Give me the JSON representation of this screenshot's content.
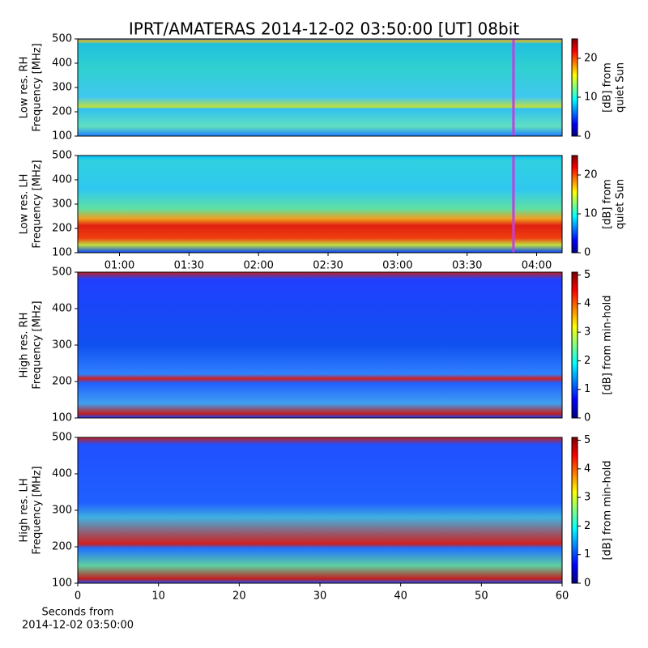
{
  "chart_data": [
    {
      "type": "heatmap",
      "title": "IPRT/AMATERAS 2014-12-02 03:50:00 [UT]   08bit",
      "ylabel": [
        "Low res. RH",
        "Frequency [MHz]"
      ],
      "ylim": [
        100,
        500
      ],
      "yticks": [
        100,
        200,
        300,
        400,
        500
      ],
      "xlim": [
        42,
        251
      ],
      "vline": {
        "x": 230,
        "color": "#c040e0"
      },
      "colorbar": {
        "label": [
          "[dB] from",
          "quiet Sun"
        ],
        "lim": [
          0,
          25
        ],
        "ticks": [
          0,
          10,
          20
        ]
      }
    },
    {
      "type": "heatmap",
      "ylabel": [
        "Low res. LH",
        "Frequency [MHz]"
      ],
      "ylim": [
        100,
        500
      ],
      "yticks": [
        100,
        200,
        300,
        400,
        500
      ],
      "xlim": [
        42,
        251
      ],
      "vline": {
        "x": 230,
        "color": "#c040e0"
      },
      "xticks": [
        {
          "value": 60,
          "label": "01:00"
        },
        {
          "value": 90,
          "label": "01:30"
        },
        {
          "value": 120,
          "label": "02:00"
        },
        {
          "value": 150,
          "label": "02:30"
        },
        {
          "value": 180,
          "label": "03:00"
        },
        {
          "value": 210,
          "label": "03:30"
        },
        {
          "value": 240,
          "label": "04:00"
        }
      ],
      "colorbar": {
        "label": [
          "[dB] from",
          "quiet Sun"
        ],
        "lim": [
          0,
          25
        ],
        "ticks": [
          0,
          10,
          20
        ]
      }
    },
    {
      "type": "heatmap",
      "ylabel": [
        "High res. RH",
        "Frequency [MHz]"
      ],
      "ylim": [
        100,
        500
      ],
      "yticks": [
        100,
        200,
        300,
        400,
        500
      ],
      "xlim": [
        0,
        60
      ],
      "colorbar": {
        "label": [
          "[dB] from min-hold"
        ],
        "lim": [
          0,
          5.1
        ],
        "ticks": [
          0,
          1,
          2,
          3,
          4,
          5
        ]
      }
    },
    {
      "type": "heatmap",
      "ylabel": [
        "High res. LH",
        "Frequency [MHz]"
      ],
      "ylim": [
        100,
        500
      ],
      "yticks": [
        100,
        200,
        300,
        400,
        500
      ],
      "xlim": [
        0,
        60
      ],
      "xticks": [
        0,
        10,
        20,
        30,
        40,
        50,
        60
      ],
      "xlabel": [
        "Seconds from",
        "2014-12-02 03:50:00"
      ],
      "colorbar": {
        "label": [
          "[dB] from min-hold"
        ],
        "lim": [
          0,
          5.1
        ],
        "ticks": [
          0,
          1,
          2,
          3,
          4,
          5
        ]
      }
    }
  ]
}
